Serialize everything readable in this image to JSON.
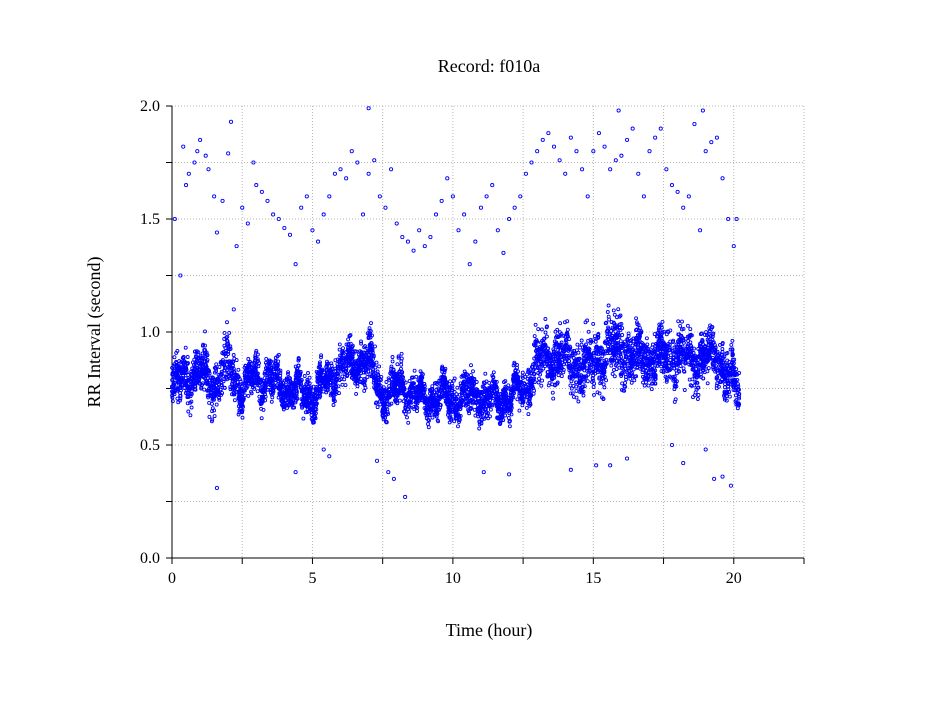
{
  "chart_data": {
    "type": "scatter",
    "title": "Record:  f010a",
    "xlabel": "Time (hour)",
    "ylabel": "RR Interval (second)",
    "xlim": [
      0,
      22.5
    ],
    "ylim": [
      0,
      2.0
    ],
    "x_ticks": [
      0,
      2.5,
      5,
      7.5,
      10,
      12.5,
      15,
      17.5,
      20,
      22.5
    ],
    "x_tick_labels": [
      "0",
      "",
      "5",
      "",
      "10",
      "",
      "15",
      "",
      "20",
      ""
    ],
    "y_ticks": [
      0,
      0.25,
      0.5,
      0.75,
      1.0,
      1.25,
      1.5,
      1.75,
      2.0
    ],
    "y_tick_labels": [
      "0.0",
      "",
      "0.5",
      "",
      "1.0",
      "",
      "1.5",
      "",
      "2.0"
    ],
    "grid": true,
    "marker": "open-circle",
    "color": "#0000ff",
    "band_profile": {
      "description_source": "estimated from visible dense band of RR intervals",
      "x": [
        0.0,
        0.5,
        1.0,
        1.5,
        2.0,
        2.5,
        3.0,
        3.5,
        4.0,
        4.5,
        5.0,
        5.5,
        6.0,
        6.5,
        7.0,
        7.5,
        8.0,
        8.5,
        9.0,
        9.5,
        10.0,
        10.5,
        11.0,
        11.5,
        12.0,
        12.5,
        13.0,
        13.5,
        14.0,
        14.5,
        15.0,
        15.5,
        16.0,
        16.5,
        17.0,
        17.5,
        18.0,
        18.5,
        19.0,
        19.5,
        20.0,
        20.2
      ],
      "center": [
        0.76,
        0.8,
        0.82,
        0.76,
        0.86,
        0.74,
        0.8,
        0.78,
        0.75,
        0.74,
        0.72,
        0.78,
        0.84,
        0.86,
        0.88,
        0.72,
        0.76,
        0.74,
        0.7,
        0.72,
        0.7,
        0.72,
        0.72,
        0.69,
        0.72,
        0.74,
        0.86,
        0.9,
        0.88,
        0.84,
        0.86,
        0.94,
        0.92,
        0.88,
        0.9,
        0.88,
        0.92,
        0.86,
        0.9,
        0.88,
        0.76,
        0.72
      ],
      "spread": [
        0.08,
        0.09,
        0.09,
        0.09,
        0.11,
        0.07,
        0.07,
        0.07,
        0.07,
        0.07,
        0.07,
        0.07,
        0.08,
        0.08,
        0.08,
        0.08,
        0.08,
        0.07,
        0.06,
        0.07,
        0.07,
        0.08,
        0.08,
        0.07,
        0.07,
        0.07,
        0.1,
        0.1,
        0.1,
        0.1,
        0.11,
        0.12,
        0.12,
        0.1,
        0.1,
        0.1,
        0.12,
        0.11,
        0.1,
        0.1,
        0.1,
        0.08
      ]
    },
    "outliers": {
      "x": [
        0.1,
        0.3,
        0.4,
        0.5,
        0.6,
        0.8,
        0.9,
        1.0,
        1.2,
        1.3,
        1.5,
        1.6,
        1.8,
        2.0,
        2.1,
        2.3,
        2.5,
        2.7,
        2.9,
        3.0,
        3.2,
        3.4,
        3.6,
        3.8,
        4.0,
        4.2,
        4.4,
        4.6,
        4.8,
        5.0,
        5.2,
        5.4,
        5.6,
        5.8,
        6.0,
        6.2,
        6.4,
        6.6,
        6.8,
        7.0,
        7.2,
        7.4,
        7.6,
        7.8,
        8.0,
        8.2,
        8.4,
        8.6,
        8.8,
        9.0,
        9.2,
        9.4,
        9.6,
        9.8,
        10.0,
        10.2,
        10.4,
        10.6,
        10.8,
        11.0,
        11.2,
        11.4,
        11.6,
        11.8,
        12.0,
        12.2,
        12.4,
        12.6,
        12.8,
        13.0,
        13.2,
        13.4,
        13.6,
        13.8,
        14.0,
        14.2,
        14.4,
        14.6,
        14.8,
        15.0,
        15.2,
        15.4,
        15.6,
        15.8,
        16.0,
        16.2,
        16.4,
        16.6,
        16.8,
        17.0,
        17.2,
        17.4,
        17.6,
        17.8,
        18.0,
        18.2,
        18.4,
        18.6,
        18.8,
        19.0,
        19.2,
        19.4,
        19.6,
        19.8,
        20.0,
        20.1,
        1.6,
        4.4,
        5.4,
        5.6,
        7.3,
        7.7,
        7.9,
        8.3,
        11.1,
        12.0,
        14.2,
        15.1,
        15.6,
        16.2,
        17.8,
        18.2,
        19.0,
        19.3,
        19.6,
        19.9,
        2.2,
        7.0,
        15.9,
        18.9
      ],
      "y": [
        1.5,
        1.25,
        1.82,
        1.65,
        1.7,
        1.75,
        1.8,
        1.85,
        1.78,
        1.72,
        1.6,
        1.44,
        1.58,
        1.79,
        1.93,
        1.38,
        1.55,
        1.48,
        1.75,
        1.65,
        1.62,
        1.58,
        1.52,
        1.5,
        1.46,
        1.43,
        1.3,
        1.55,
        1.6,
        1.45,
        1.4,
        1.52,
        1.6,
        1.7,
        1.72,
        1.68,
        1.8,
        1.75,
        1.52,
        1.7,
        1.76,
        1.6,
        1.55,
        1.72,
        1.48,
        1.42,
        1.4,
        1.36,
        1.45,
        1.38,
        1.42,
        1.52,
        1.58,
        1.68,
        1.6,
        1.45,
        1.52,
        1.3,
        1.4,
        1.55,
        1.6,
        1.65,
        1.45,
        1.35,
        1.5,
        1.55,
        1.6,
        1.7,
        1.75,
        1.8,
        1.85,
        1.88,
        1.82,
        1.76,
        1.7,
        1.86,
        1.8,
        1.72,
        1.6,
        1.8,
        1.88,
        1.82,
        1.72,
        1.76,
        1.78,
        1.85,
        1.9,
        1.7,
        1.6,
        1.8,
        1.86,
        1.9,
        1.72,
        1.65,
        1.62,
        1.55,
        1.6,
        1.92,
        1.45,
        1.8,
        1.84,
        1.86,
        1.68,
        1.5,
        1.38,
        1.5,
        0.31,
        0.38,
        0.48,
        0.45,
        0.43,
        0.38,
        0.35,
        0.27,
        0.38,
        0.37,
        0.39,
        0.41,
        0.41,
        0.44,
        0.5,
        0.42,
        0.48,
        0.35,
        0.36,
        0.32,
        1.1,
        1.99,
        1.98,
        1.98
      ]
    }
  }
}
